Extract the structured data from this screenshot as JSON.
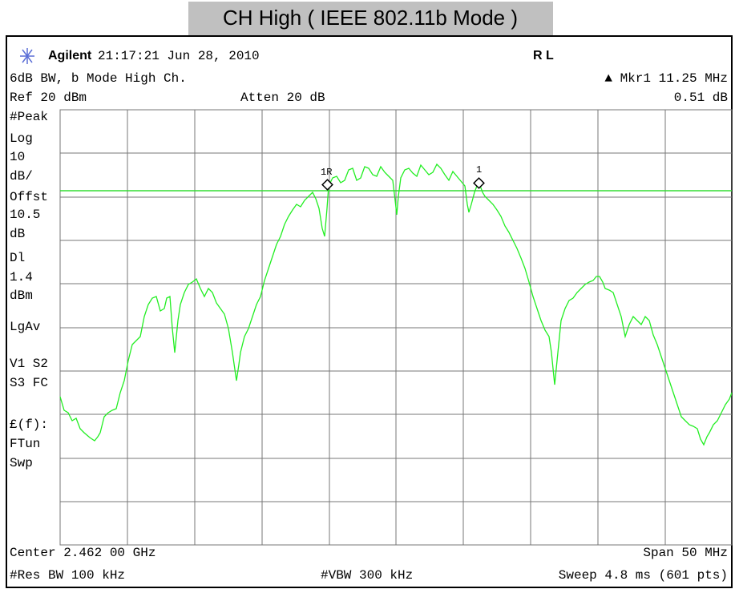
{
  "header": {
    "title": "CH High ( IEEE 802.11b Mode )"
  },
  "status": {
    "brand": "Agilent",
    "timestamp": "21:17:21  Jun 28, 2010",
    "flags": "R L"
  },
  "info": {
    "label": "6dB BW, b Mode High Ch.",
    "marker": "▲ Mkr1  11.25 MHz",
    "ref": "Ref 20 dBm",
    "atten": "Atten 20 dB",
    "marker_value": "0.51 dB"
  },
  "side_panel": [
    "#Peak",
    "Log",
    "10",
    "dB/",
    "Offst",
    "10.5",
    "dB",
    "Dl",
    "1.4",
    "dBm",
    "LgAv",
    "V1  S2",
    "S3  FC",
    "£(f):",
    "FTun",
    "Swp"
  ],
  "markers": [
    "1R",
    "1"
  ],
  "footer": {
    "center": "Center 2.462 00 GHz",
    "span": "Span 50 MHz",
    "rbw": "#Res BW 100 kHz",
    "vbw": "#VBW 300 kHz",
    "sweep": "Sweep 4.8 ms (601 pts)"
  }
}
